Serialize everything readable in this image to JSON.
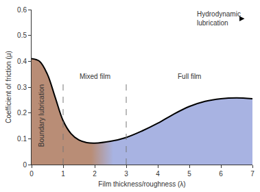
{
  "chart_data": {
    "type": "line",
    "x_label": "Film thickness/roughness (λ)",
    "y_label": "Coefficient of friction (μ)",
    "x": [
      0,
      0.25,
      0.5,
      0.75,
      1.0,
      1.25,
      1.5,
      1.75,
      2.0,
      2.5,
      3.0,
      3.5,
      4.0,
      4.5,
      5.0,
      5.5,
      6.0,
      6.5,
      7.0
    ],
    "values": [
      0.41,
      0.4,
      0.35,
      0.26,
      0.17,
      0.12,
      0.095,
      0.085,
      0.083,
      0.09,
      0.105,
      0.13,
      0.16,
      0.195,
      0.225,
      0.245,
      0.255,
      0.258,
      0.255
    ],
    "color": "#000000",
    "xlim": [
      0,
      7
    ],
    "xticks": [
      0,
      1,
      2,
      3,
      4,
      5,
      6,
      7
    ],
    "ylim": [
      0,
      0.6
    ],
    "yticks": [
      0,
      0.1,
      0.2,
      0.3,
      0.4,
      0.5,
      0.6
    ],
    "grid": false,
    "region_bounds": [
      1,
      3
    ],
    "annotations": [
      "Boundary lubrication",
      "Mixed film",
      "Full film",
      "Hydrodynamic lubrication"
    ]
  }
}
